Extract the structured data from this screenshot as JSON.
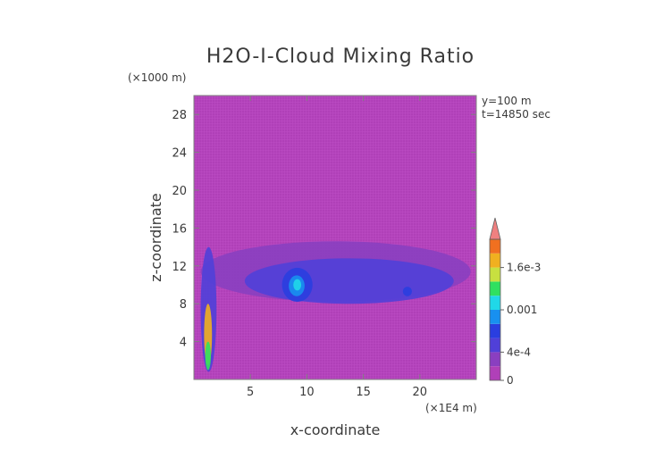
{
  "chart_data": {
    "type": "heatmap",
    "title": "H2O-I-Cloud Mixing Ratio",
    "xlabel": "x-coordinate",
    "ylabel": "z-coordinate",
    "x_unit": "(×1E4 m)",
    "y_unit": "(×1000 m)",
    "annotations": [
      "y=100 m",
      "t=14850 sec"
    ],
    "xlim": [
      0,
      2.5
    ],
    "ylim": [
      0,
      30
    ],
    "x_ticks": [
      0.5,
      1.0,
      1.5,
      2.0
    ],
    "x_tick_labels": [
      "5",
      "10",
      "15",
      "20"
    ],
    "y_ticks": [
      4,
      8,
      12,
      16,
      20,
      24,
      28
    ],
    "y_tick_labels": [
      "4",
      "8",
      "12",
      "16",
      "20",
      "24",
      "28"
    ],
    "background_level": 0,
    "background_color": "#b040b8",
    "colorbar": {
      "levels": [
        0,
        0.0002,
        0.0004,
        0.0006,
        0.0008,
        0.001,
        0.0012,
        0.0014,
        0.0016,
        0.0018,
        0.002
      ],
      "colors": [
        "#b040b8",
        "#8a3fc0",
        "#5040d8",
        "#2a3ee0",
        "#1890f0",
        "#20d8e8",
        "#30e060",
        "#c8e040",
        "#f0b020",
        "#f07020",
        "#e04040"
      ],
      "extend_color": "#f08080",
      "tick_values": [
        0,
        0.0004,
        0.001,
        0.0016
      ],
      "tick_labels": [
        "0",
        "4e-4",
        "0.001",
        "1.6e-3"
      ]
    },
    "regions": [
      {
        "level": 0.0002,
        "x": [
          0.06,
          2.45
        ],
        "z": [
          8.2,
          14.6
        ]
      },
      {
        "level": 0.0004,
        "x": [
          0.45,
          2.3
        ],
        "z": [
          8.0,
          12.8
        ]
      },
      {
        "level": 0.0006,
        "x": [
          0.78,
          1.05
        ],
        "z": [
          8.2,
          11.8
        ]
      },
      {
        "level": 0.0008,
        "x": [
          0.84,
          0.98
        ],
        "z": [
          8.8,
          11.0
        ]
      },
      {
        "level": 0.001,
        "x": [
          0.88,
          0.95
        ],
        "z": [
          9.4,
          10.6
        ]
      },
      {
        "level": 0.0006,
        "x": [
          1.85,
          1.93
        ],
        "z": [
          8.8,
          9.8
        ]
      },
      {
        "level": 0.0004,
        "x": [
          0.06,
          0.2
        ],
        "z": [
          0.8,
          14.0
        ]
      },
      {
        "level": 0.0016,
        "x": [
          0.09,
          0.16
        ],
        "z": [
          1.5,
          8.0
        ]
      },
      {
        "level": 0.0012,
        "x": [
          0.1,
          0.15
        ],
        "z": [
          1.0,
          4.0
        ]
      }
    ]
  }
}
